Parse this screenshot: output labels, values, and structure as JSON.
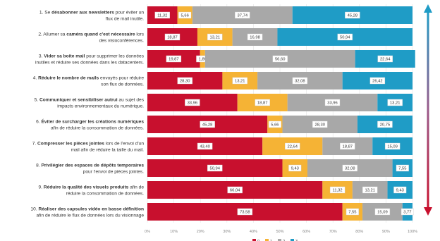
{
  "chart_data": {
    "type": "bar",
    "stacked": true,
    "orientation": "horizontal",
    "title": "",
    "xlabel": "",
    "ylabel": "",
    "xlim": [
      0,
      100
    ],
    "x_ticks": [
      "0%",
      "10%",
      "20%",
      "30%",
      "40%",
      "50%",
      "60%",
      "70%",
      "80%",
      "90%",
      "100%"
    ],
    "grid": true,
    "legend_position": "bottom",
    "categories": [
      {
        "lines": [
          [
            {
              "t": "1. Se ",
              "b": false
            },
            {
              "t": "désabonner aux newsletters",
              "b": true
            },
            {
              "t": " pour éviter un",
              "b": false
            }
          ],
          [
            {
              "t": "flux de mail inutile.",
              "b": false
            }
          ]
        ]
      },
      {
        "lines": [
          [
            {
              "t": "2. Allumer sa ",
              "b": false
            },
            {
              "t": "caméra quand c'est nécessaire",
              "b": true
            },
            {
              "t": " lors",
              "b": false
            }
          ],
          [
            {
              "t": "des visioconférences.",
              "b": false
            }
          ]
        ]
      },
      {
        "lines": [
          [
            {
              "t": "3. ",
              "b": false
            },
            {
              "t": "Vider sa boite mail",
              "b": true
            },
            {
              "t": " pour supprimer les données",
              "b": false
            }
          ],
          [
            {
              "t": "inutiles et réduire ses données dans les datacenters.",
              "b": false
            }
          ]
        ]
      },
      {
        "lines": [
          [
            {
              "t": "4. ",
              "b": false
            },
            {
              "t": "Réduire le nombre de mails",
              "b": true
            },
            {
              "t": " envoyés pour réduire",
              "b": false
            }
          ],
          [
            {
              "t": "son flux de données.",
              "b": false
            }
          ]
        ]
      },
      {
        "lines": [
          [
            {
              "t": "5. ",
              "b": false
            },
            {
              "t": "Communiquer et sensibiliser autrui",
              "b": true
            },
            {
              "t": " au sujet des",
              "b": false
            }
          ],
          [
            {
              "t": "impacts environnementaux du numérique.",
              "b": false
            }
          ]
        ]
      },
      {
        "lines": [
          [
            {
              "t": "6. ",
              "b": false
            },
            {
              "t": "Éviter de surcharger les créations numériques",
              "b": true
            }
          ],
          [
            {
              "t": "afin de réduire la consommation de données.",
              "b": false
            }
          ]
        ]
      },
      {
        "lines": [
          [
            {
              "t": "7. ",
              "b": false
            },
            {
              "t": "Compresser les pièces jointes",
              "b": true
            },
            {
              "t": " lors de l'envoi d'un",
              "b": false
            }
          ],
          [
            {
              "t": "mail afin de réduire la taille du mail.",
              "b": false
            }
          ]
        ]
      },
      {
        "lines": [
          [
            {
              "t": "8. ",
              "b": false
            },
            {
              "t": "Privilégier des espaces de dépôts temporaires",
              "b": true
            }
          ],
          [
            {
              "t": "pour l'envoi de pièces jointes.",
              "b": false
            }
          ]
        ]
      },
      {
        "lines": [
          [
            {
              "t": "9. ",
              "b": false
            },
            {
              "t": "Réduire la qualité des visuels produits",
              "b": true
            },
            {
              "t": " afin de",
              "b": false
            }
          ],
          [
            {
              "t": "réduire la consommation de données.",
              "b": false
            }
          ]
        ]
      },
      {
        "lines": [
          [
            {
              "t": "10. ",
              "b": false
            },
            {
              "t": "Réaliser des capsules vidéo en basse définition",
              "b": true
            }
          ],
          [
            {
              "t": "afin de réduire le flux de données lors du visionnage",
              "b": false
            }
          ]
        ]
      }
    ],
    "series": [
      {
        "name": "0",
        "color": "#c8102e",
        "values": [
          11.32,
          18.87,
          19.87,
          28.3,
          33.96,
          45.28,
          43.4,
          50.94,
          66.04,
          73.58
        ]
      },
      {
        "name": "1",
        "color": "#f5b335",
        "values": [
          5.66,
          13.21,
          1.89,
          13.21,
          18.87,
          5.66,
          22.64,
          9.43,
          11.32,
          7.55
        ]
      },
      {
        "name": "2",
        "color": "#a8a8a8",
        "values": [
          37.74,
          16.98,
          56.6,
          32.08,
          33.96,
          28.3,
          18.87,
          32.08,
          13.21,
          15.09
        ]
      },
      {
        "name": "3",
        "color": "#1f9cc6",
        "values": [
          45.28,
          50.94,
          22.64,
          26.42,
          13.21,
          20.75,
          15.09,
          7.55,
          9.43,
          3.77
        ]
      }
    ]
  }
}
